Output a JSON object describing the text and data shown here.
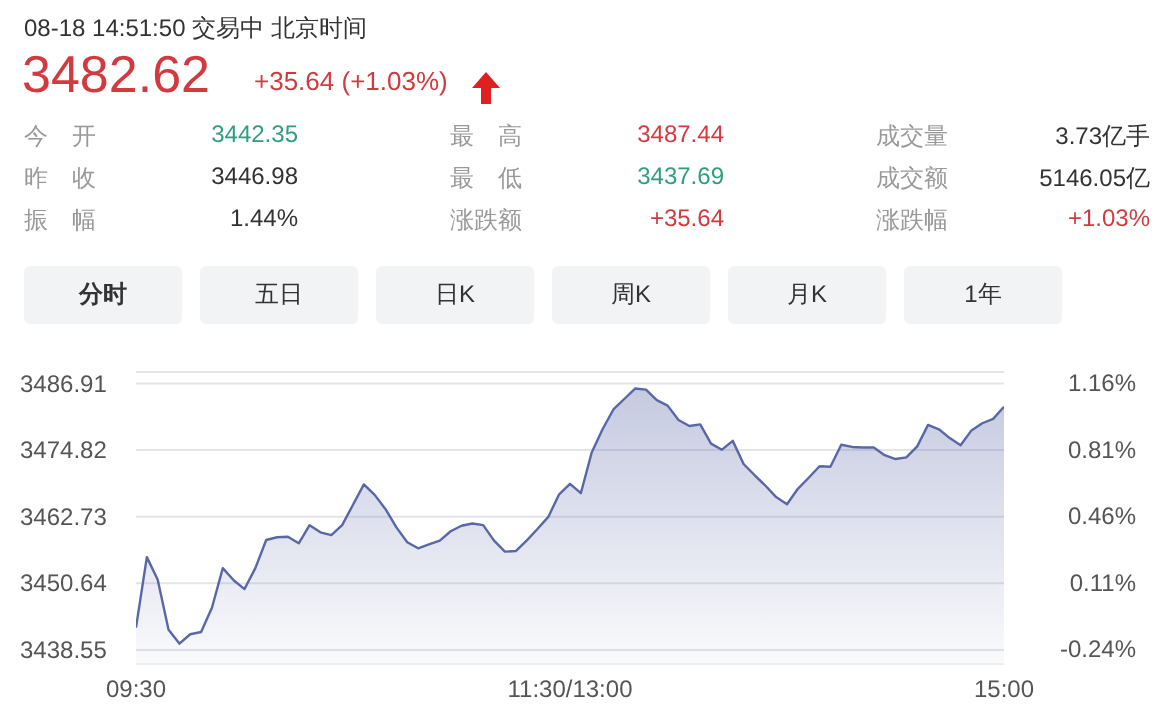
{
  "chart_data": {
    "type": "area",
    "title": "08-18 14:51:50  交易中  北京时间",
    "subtitle": "3482.62",
    "annotations": [
      "+35.64 (+1.03%)",
      "今　开",
      "3442.35",
      "最　高",
      "3487.44",
      "成交量",
      "3.73亿手",
      "昨　收",
      "3446.98",
      "最　低",
      "3437.69",
      "成交额",
      "5146.05亿",
      "振　幅",
      "1.44%",
      "涨跌额",
      "+35.64",
      "涨跌幅",
      "+1.03%",
      "分时",
      "五日",
      "日K",
      "周K",
      "月K",
      "1年"
    ],
    "categories": [
      "09:30",
      null,
      null,
      null,
      null,
      null,
      null,
      null,
      null,
      null,
      null,
      null,
      null,
      null,
      null,
      null,
      null,
      null,
      null,
      null,
      null,
      null,
      null,
      null,
      null,
      null,
      null,
      null,
      null,
      null,
      null,
      null,
      null,
      null,
      null,
      null,
      null,
      null,
      null,
      null,
      "11:30/13:00",
      null,
      null,
      null,
      null,
      null,
      null,
      null,
      null,
      null,
      null,
      null,
      null,
      null,
      null,
      null,
      null,
      null,
      null,
      null,
      null,
      null,
      null,
      null,
      null,
      null,
      null,
      null,
      null,
      null,
      null,
      null,
      null,
      null,
      null,
      null,
      null,
      null,
      null,
      null,
      "15:00"
    ],
    "series": [
      {
        "color": "#5a67a6",
        "values": [
          3442.6,
          3455.4,
          3451.3,
          3442.2,
          3439.7,
          3441.4,
          3441.8,
          3446.2,
          3453.4,
          3451.2,
          3449.6,
          3453.4,
          3458.5,
          3459.0,
          3459.1,
          3457.9,
          3461.2,
          3459.9,
          3459.4,
          3461.2,
          3464.9,
          3468.6,
          3466.7,
          3464.1,
          3460.8,
          3458.1,
          3457.0,
          3457.7,
          3458.4,
          3460.1,
          3461.1,
          3461.5,
          3461.2,
          3458.4,
          3456.4,
          3456.5,
          3458.4,
          3460.5,
          3462.7,
          3466.8,
          3468.7,
          3467.0,
          3474.4,
          3478.6,
          3482.2,
          3484.1,
          3486.0,
          3485.8,
          3483.9,
          3482.9,
          3480.3,
          3479.2,
          3479.5,
          3476.0,
          3474.9,
          3476.5,
          3472.3,
          3470.3,
          3468.4,
          3466.3,
          3465.0,
          3467.8,
          3469.8,
          3471.9,
          3471.8,
          3475.8,
          3475.4,
          3475.3,
          3475.3,
          3473.9,
          3473.2,
          3473.5,
          3475.5,
          3479.4,
          3478.6,
          3477.0,
          3475.7,
          3478.4,
          3479.7,
          3480.5,
          3482.7
        ]
      }
    ],
    "ylim": [
      3436,
      3489
    ],
    "yticks": [
      3438.55,
      3450.64,
      3462.73,
      3474.82,
      3486.91
    ],
    "y2lim": [
      -0.3185,
      1.2191
    ],
    "y2ticks": [
      {
        "value": -0.24,
        "label": "-0.24%"
      },
      {
        "value": 0.11,
        "label": "0.11%"
      },
      {
        "value": 0.46,
        "label": "0.46%"
      },
      {
        "value": 0.81,
        "label": "0.81%"
      },
      {
        "value": 1.16,
        "label": "1.16%"
      }
    ],
    "grid": "y",
    "marker": "none",
    "line_style": "solid"
  }
}
